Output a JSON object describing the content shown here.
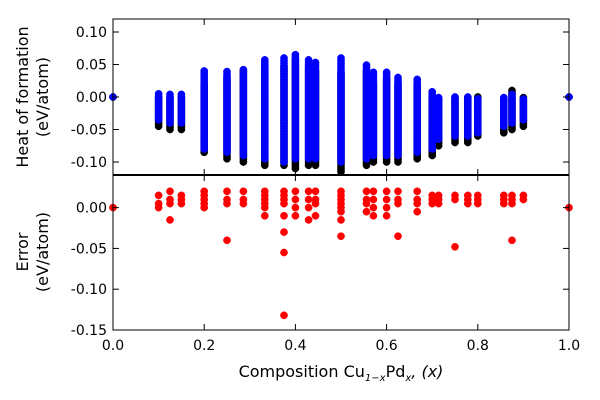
{
  "chart_data": [
    {
      "type": "scatter",
      "title": "",
      "ylabel_lines": [
        "Heat of formation",
        "(eV/atom)"
      ],
      "xlabel": "",
      "xlim": [
        0.0,
        1.0
      ],
      "ylim": [
        -0.12,
        0.12
      ],
      "yticks": [
        "0.10",
        "0.05",
        "0.00",
        "-0.05",
        "-0.10"
      ],
      "ytick_values": [
        0.1,
        0.05,
        0.0,
        -0.05,
        -0.1
      ],
      "grid": false,
      "colors": {
        "series_black": "#000000",
        "series_blue": "#0000ff"
      },
      "compositions": [
        0.1,
        0.125,
        0.15,
        0.2,
        0.25,
        0.286,
        0.333,
        0.375,
        0.4,
        0.429,
        0.444,
        0.5,
        0.556,
        0.571,
        0.6,
        0.625,
        0.667,
        0.7,
        0.714,
        0.75,
        0.778,
        0.8,
        0.857,
        0.875,
        0.9
      ],
      "series": [
        {
          "color": "#000000",
          "ranges": [
            [
              0.1,
              -0.045,
              0.0
            ],
            [
              0.125,
              -0.05,
              0.0
            ],
            [
              0.15,
              -0.05,
              0.0
            ],
            [
              0.2,
              -0.085,
              0.02
            ],
            [
              0.25,
              -0.095,
              0.03
            ],
            [
              0.286,
              -0.1,
              0.04
            ],
            [
              0.333,
              -0.105,
              0.05
            ],
            [
              0.375,
              -0.105,
              0.05
            ],
            [
              0.4,
              -0.11,
              0.06
            ],
            [
              0.429,
              -0.105,
              0.05
            ],
            [
              0.444,
              -0.105,
              0.04
            ],
            [
              0.5,
              -0.115,
              0.04
            ],
            [
              0.556,
              -0.105,
              0.04
            ],
            [
              0.571,
              -0.1,
              0.02
            ],
            [
              0.6,
              -0.1,
              0.03
            ],
            [
              0.625,
              -0.1,
              0.02
            ],
            [
              0.667,
              -0.095,
              0.02
            ],
            [
              0.7,
              -0.09,
              0.0
            ],
            [
              0.714,
              -0.075,
              0.0
            ],
            [
              0.75,
              -0.07,
              0.0
            ],
            [
              0.778,
              -0.07,
              0.0
            ],
            [
              0.8,
              -0.06,
              0.0
            ],
            [
              0.857,
              -0.055,
              0.0
            ],
            [
              0.875,
              -0.05,
              0.01
            ],
            [
              0.9,
              -0.045,
              0.0
            ]
          ],
          "endpoints": [
            [
              0.0,
              0.0
            ],
            [
              1.0,
              0.0
            ]
          ]
        },
        {
          "color": "#0000ff",
          "ranges": [
            [
              0.1,
              -0.035,
              0.005
            ],
            [
              0.125,
              -0.04,
              0.005
            ],
            [
              0.15,
              -0.04,
              0.005
            ],
            [
              0.2,
              -0.08,
              0.04
            ],
            [
              0.25,
              -0.085,
              0.04
            ],
            [
              0.286,
              -0.09,
              0.045
            ],
            [
              0.333,
              -0.095,
              0.06
            ],
            [
              0.375,
              -0.1,
              0.06
            ],
            [
              0.4,
              -0.095,
              0.065
            ],
            [
              0.429,
              -0.095,
              0.06
            ],
            [
              0.444,
              -0.095,
              0.055
            ],
            [
              0.5,
              -0.1,
              0.06
            ],
            [
              0.556,
              -0.095,
              0.05
            ],
            [
              0.571,
              -0.09,
              0.04
            ],
            [
              0.6,
              -0.09,
              0.04
            ],
            [
              0.625,
              -0.09,
              0.03
            ],
            [
              0.667,
              -0.085,
              0.03
            ],
            [
              0.7,
              -0.08,
              0.01
            ],
            [
              0.714,
              -0.065,
              0.0
            ],
            [
              0.75,
              -0.06,
              0.0
            ],
            [
              0.778,
              -0.06,
              0.0
            ],
            [
              0.8,
              -0.055,
              0.0
            ],
            [
              0.857,
              -0.045,
              0.0
            ],
            [
              0.875,
              -0.04,
              0.005
            ],
            [
              0.9,
              -0.035,
              0.0
            ]
          ],
          "endpoints": [
            [
              0.0,
              0.0
            ],
            [
              1.0,
              0.0
            ]
          ]
        }
      ]
    },
    {
      "type": "scatter",
      "title": "",
      "ylabel_lines": [
        "Error",
        "(eV/atom)"
      ],
      "xlabel": "Composition Cu",
      "xlabel_sub": "1−x",
      "xlabel_mid": "Pd",
      "xlabel_sub2": "x",
      "xlabel_tail": ", (x)",
      "xlim": [
        0.0,
        1.0
      ],
      "ylim": [
        -0.15,
        0.04
      ],
      "xticks": [
        "0.0",
        "0.2",
        "0.4",
        "0.6",
        "0.8",
        "1.0"
      ],
      "xtick_values": [
        0.0,
        0.2,
        0.4,
        0.6,
        0.8,
        1.0
      ],
      "yticks": [
        "0.00",
        "-0.05",
        "-0.10",
        "-0.15"
      ],
      "ytick_values": [
        0.0,
        -0.05,
        -0.1,
        -0.15
      ],
      "grid": false,
      "colors": {
        "series_red": "#ff0000"
      },
      "series": [
        {
          "color": "#ff0000",
          "points": [
            [
              0.0,
              0.0
            ],
            [
              1.0,
              0.0
            ],
            [
              0.1,
              0.015
            ],
            [
              0.1,
              0.005
            ],
            [
              0.1,
              0.0
            ],
            [
              0.125,
              0.02
            ],
            [
              0.125,
              0.01
            ],
            [
              0.125,
              0.005
            ],
            [
              0.125,
              -0.015
            ],
            [
              0.15,
              0.015
            ],
            [
              0.15,
              0.01
            ],
            [
              0.15,
              0.005
            ],
            [
              0.2,
              0.02
            ],
            [
              0.2,
              0.015
            ],
            [
              0.2,
              0.01
            ],
            [
              0.2,
              0.005
            ],
            [
              0.2,
              0.0
            ],
            [
              0.25,
              0.02
            ],
            [
              0.25,
              0.01
            ],
            [
              0.25,
              0.005
            ],
            [
              0.25,
              -0.04
            ],
            [
              0.286,
              0.02
            ],
            [
              0.286,
              0.01
            ],
            [
              0.286,
              0.005
            ],
            [
              0.333,
              0.02
            ],
            [
              0.333,
              0.015
            ],
            [
              0.333,
              0.01
            ],
            [
              0.333,
              0.005
            ],
            [
              0.333,
              0.0
            ],
            [
              0.333,
              -0.01
            ],
            [
              0.375,
              0.02
            ],
            [
              0.375,
              0.015
            ],
            [
              0.375,
              0.01
            ],
            [
              0.375,
              0.005
            ],
            [
              0.375,
              -0.01
            ],
            [
              0.375,
              -0.03
            ],
            [
              0.375,
              -0.055
            ],
            [
              0.375,
              -0.132
            ],
            [
              0.4,
              0.02
            ],
            [
              0.4,
              0.01
            ],
            [
              0.4,
              0.0
            ],
            [
              0.4,
              -0.01
            ],
            [
              0.429,
              0.02
            ],
            [
              0.429,
              0.01
            ],
            [
              0.429,
              0.0
            ],
            [
              0.429,
              -0.015
            ],
            [
              0.444,
              0.02
            ],
            [
              0.444,
              0.01
            ],
            [
              0.444,
              0.005
            ],
            [
              0.444,
              -0.01
            ],
            [
              0.5,
              0.02
            ],
            [
              0.5,
              0.015
            ],
            [
              0.5,
              0.01
            ],
            [
              0.5,
              0.005
            ],
            [
              0.5,
              0.0
            ],
            [
              0.5,
              -0.005
            ],
            [
              0.5,
              -0.015
            ],
            [
              0.5,
              -0.035
            ],
            [
              0.556,
              0.02
            ],
            [
              0.556,
              0.01
            ],
            [
              0.556,
              0.005
            ],
            [
              0.556,
              -0.005
            ],
            [
              0.571,
              0.02
            ],
            [
              0.571,
              0.01
            ],
            [
              0.571,
              0.0
            ],
            [
              0.571,
              -0.01
            ],
            [
              0.6,
              0.02
            ],
            [
              0.6,
              0.01
            ],
            [
              0.6,
              0.0
            ],
            [
              0.6,
              -0.01
            ],
            [
              0.625,
              0.02
            ],
            [
              0.625,
              0.01
            ],
            [
              0.625,
              0.005
            ],
            [
              0.625,
              -0.035
            ],
            [
              0.667,
              0.02
            ],
            [
              0.667,
              0.01
            ],
            [
              0.667,
              0.005
            ],
            [
              0.667,
              -0.005
            ],
            [
              0.7,
              0.015
            ],
            [
              0.7,
              0.01
            ],
            [
              0.7,
              0.005
            ],
            [
              0.714,
              0.015
            ],
            [
              0.714,
              0.01
            ],
            [
              0.714,
              0.005
            ],
            [
              0.75,
              0.015
            ],
            [
              0.75,
              0.01
            ],
            [
              0.75,
              -0.048
            ],
            [
              0.778,
              0.015
            ],
            [
              0.778,
              0.01
            ],
            [
              0.778,
              0.005
            ],
            [
              0.8,
              0.015
            ],
            [
              0.8,
              0.01
            ],
            [
              0.8,
              0.005
            ],
            [
              0.857,
              0.015
            ],
            [
              0.857,
              0.01
            ],
            [
              0.857,
              0.005
            ],
            [
              0.875,
              0.015
            ],
            [
              0.875,
              0.01
            ],
            [
              0.875,
              0.005
            ],
            [
              0.875,
              -0.04
            ],
            [
              0.9,
              0.015
            ],
            [
              0.9,
              0.01
            ]
          ]
        }
      ]
    }
  ]
}
